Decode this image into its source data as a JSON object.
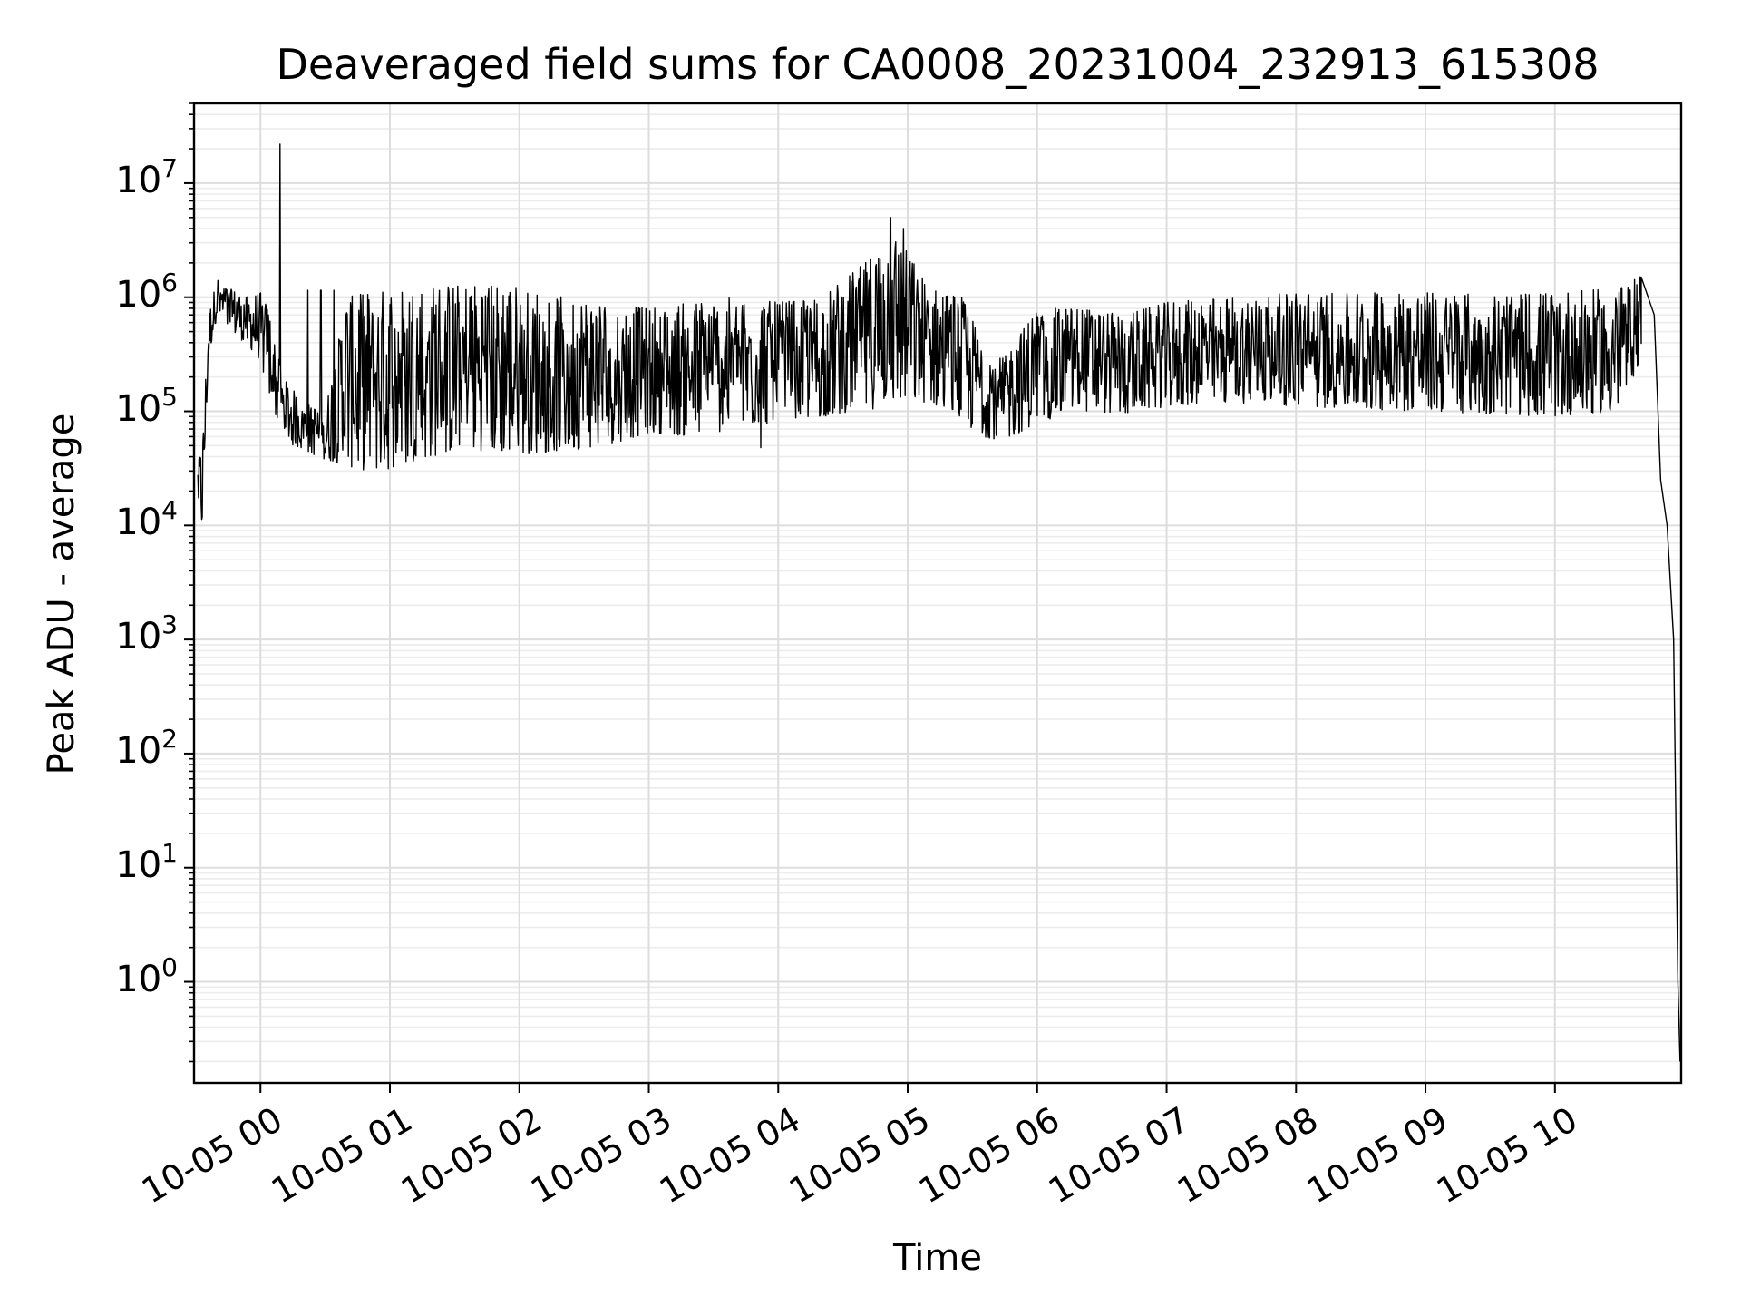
{
  "chart_data": {
    "type": "line",
    "title": "Deaveraged field sums for CA0008_20231004_232913_615308",
    "xlabel": "Time",
    "ylabel": "Peak ADU - average",
    "yscale": "log",
    "ylim": [
      0.13,
      50000000
    ],
    "xlim": [
      "2023-10-04 23:29:13",
      "2023-10-05 10:58:30"
    ],
    "grid": "major and minor, light gray",
    "line_color": "#000000",
    "x_ticks": [
      {
        "x": "2023-10-05 00:00",
        "label": "10-05 00"
      },
      {
        "x": "2023-10-05 01:00",
        "label": "10-05 01"
      },
      {
        "x": "2023-10-05 02:00",
        "label": "10-05 02"
      },
      {
        "x": "2023-10-05 03:00",
        "label": "10-05 03"
      },
      {
        "x": "2023-10-05 04:00",
        "label": "10-05 04"
      },
      {
        "x": "2023-10-05 05:00",
        "label": "10-05 05"
      },
      {
        "x": "2023-10-05 06:00",
        "label": "10-05 06"
      },
      {
        "x": "2023-10-05 07:00",
        "label": "10-05 07"
      },
      {
        "x": "2023-10-05 08:00",
        "label": "10-05 08"
      },
      {
        "x": "2023-10-05 09:00",
        "label": "10-05 09"
      },
      {
        "x": "2023-10-05 10:00",
        "label": "10-05 10"
      }
    ],
    "y_ticks": [
      {
        "y": 1,
        "base": "10",
        "exp": "0"
      },
      {
        "y": 10,
        "base": "10",
        "exp": "1"
      },
      {
        "y": 100,
        "base": "10",
        "exp": "2"
      },
      {
        "y": 1000,
        "base": "10",
        "exp": "3"
      },
      {
        "y": 10000,
        "base": "10",
        "exp": "4"
      },
      {
        "y": 100000,
        "base": "10",
        "exp": "5"
      },
      {
        "y": 1000000,
        "base": "10",
        "exp": "6"
      },
      {
        "y": 10000000,
        "base": "10",
        "exp": "7"
      }
    ],
    "series": [
      {
        "low_envelope": [
          [
            "2023-10-04 23:31",
            15000
          ],
          [
            "2023-10-04 23:33",
            9000
          ],
          [
            "2023-10-04 23:36",
            300000
          ],
          [
            "2023-10-04 23:40",
            700000
          ],
          [
            "2023-10-04 23:45",
            500000
          ],
          [
            "2023-10-04 23:50",
            450000
          ],
          [
            "2023-10-04 23:55",
            350000
          ],
          [
            "2023-10-05 00:00",
            280000
          ],
          [
            "2023-10-05 00:05",
            100000
          ],
          [
            "2023-10-05 00:10",
            70000
          ],
          [
            "2023-10-05 00:15",
            50000
          ],
          [
            "2023-10-05 00:20",
            45000
          ],
          [
            "2023-10-05 00:30",
            38000
          ],
          [
            "2023-10-05 00:40",
            33000
          ],
          [
            "2023-10-05 00:50",
            30000
          ],
          [
            "2023-10-05 01:00",
            31000
          ],
          [
            "2023-10-05 01:15",
            38000
          ],
          [
            "2023-10-05 01:30",
            45000
          ],
          [
            "2023-10-05 01:45",
            45000
          ],
          [
            "2023-10-05 02:00",
            42000
          ],
          [
            "2023-10-05 02:20",
            45000
          ],
          [
            "2023-10-05 02:40",
            50000
          ],
          [
            "2023-10-05 03:00",
            65000
          ],
          [
            "2023-10-05 03:20",
            60000
          ],
          [
            "2023-10-05 03:40",
            70000
          ],
          [
            "2023-10-05 04:00",
            80000
          ],
          [
            "2023-10-05 04:20",
            90000
          ],
          [
            "2023-10-05 04:40",
            100000
          ],
          [
            "2023-10-05 04:55",
            120000
          ],
          [
            "2023-10-05 05:10",
            120000
          ],
          [
            "2023-10-05 05:25",
            80000
          ],
          [
            "2023-10-05 05:35",
            60000
          ],
          [
            "2023-10-05 05:45",
            55000
          ],
          [
            "2023-10-05 06:00",
            80000
          ],
          [
            "2023-10-05 06:20",
            100000
          ],
          [
            "2023-10-05 06:40",
            95000
          ],
          [
            "2023-10-05 07:00",
            110000
          ],
          [
            "2023-10-05 07:30",
            120000
          ],
          [
            "2023-10-05 08:00",
            110000
          ],
          [
            "2023-10-05 08:30",
            105000
          ],
          [
            "2023-10-05 09:00",
            100000
          ],
          [
            "2023-10-05 09:30",
            95000
          ],
          [
            "2023-10-05 10:00",
            90000
          ],
          [
            "2023-10-05 10:30",
            100000
          ],
          [
            "2023-10-05 10:40",
            300000
          ]
        ],
        "high_envelope": [
          [
            "2023-10-04 23:31",
            35000
          ],
          [
            "2023-10-04 23:33",
            50000
          ],
          [
            "2023-10-04 23:36",
            700000
          ],
          [
            "2023-10-04 23:40",
            1500000
          ],
          [
            "2023-10-04 23:45",
            1200000
          ],
          [
            "2023-10-04 23:50",
            1100000
          ],
          [
            "2023-10-04 23:55",
            1000000
          ],
          [
            "2023-10-05 00:00",
            1100000
          ],
          [
            "2023-10-05 00:05",
            700000
          ],
          [
            "2023-10-05 00:10",
            200000
          ],
          [
            "2023-10-05 00:20",
            120000
          ],
          [
            "2023-10-05 00:30",
            100000
          ],
          [
            "2023-10-05 00:40",
            1000000
          ],
          [
            "2023-10-05 00:50",
            1100000
          ],
          [
            "2023-10-05 01:00",
            1150000
          ],
          [
            "2023-10-05 01:20",
            1250000
          ],
          [
            "2023-10-05 01:40",
            1300000
          ],
          [
            "2023-10-05 02:00",
            1250000
          ],
          [
            "2023-10-05 02:20",
            1000000
          ],
          [
            "2023-10-05 02:40",
            900000
          ],
          [
            "2023-10-05 03:00",
            800000
          ],
          [
            "2023-10-05 03:20",
            900000
          ],
          [
            "2023-10-05 03:40",
            1000000
          ],
          [
            "2023-10-05 04:00",
            900000
          ],
          [
            "2023-10-05 04:20",
            1000000
          ],
          [
            "2023-10-05 04:40",
            2000000
          ],
          [
            "2023-10-05 04:55",
            3500000
          ],
          [
            "2023-10-05 05:10",
            1200000
          ],
          [
            "2023-10-05 05:25",
            1000000
          ],
          [
            "2023-10-05 05:35",
            400000
          ],
          [
            "2023-10-05 05:45",
            300000
          ],
          [
            "2023-10-05 06:00",
            800000
          ],
          [
            "2023-10-05 06:20",
            800000
          ],
          [
            "2023-10-05 06:40",
            700000
          ],
          [
            "2023-10-05 07:00",
            900000
          ],
          [
            "2023-10-05 07:30",
            1000000
          ],
          [
            "2023-10-05 08:00",
            1100000
          ],
          [
            "2023-10-05 08:30",
            1100000
          ],
          [
            "2023-10-05 09:00",
            1100000
          ],
          [
            "2023-10-05 09:30",
            1050000
          ],
          [
            "2023-10-05 10:00",
            1100000
          ],
          [
            "2023-10-05 10:30",
            1200000
          ],
          [
            "2023-10-05 10:40",
            1600000
          ]
        ],
        "tail": [
          [
            "2023-10-05 10:40",
            1500000
          ],
          [
            "2023-10-05 10:46",
            700000
          ],
          [
            "2023-10-05 10:49",
            25000
          ],
          [
            "2023-10-05 10:52",
            10000
          ],
          [
            "2023-10-05 10:55",
            1000
          ],
          [
            "2023-10-05 10:57",
            1
          ],
          [
            "2023-10-05 10:58",
            0.2
          ]
        ],
        "spikes": [
          [
            "2023-10-05 00:09",
            22000000
          ],
          [
            "2023-10-05 04:52",
            5000000
          ],
          [
            "2023-10-05 04:58",
            4000000
          ],
          [
            "2023-10-05 03:52",
            48000
          ],
          [
            "2023-10-05 00:22",
            1150000
          ],
          [
            "2023-10-05 00:28",
            1150000
          ],
          [
            "2023-10-05 00:34",
            1150000
          ]
        ]
      }
    ]
  }
}
